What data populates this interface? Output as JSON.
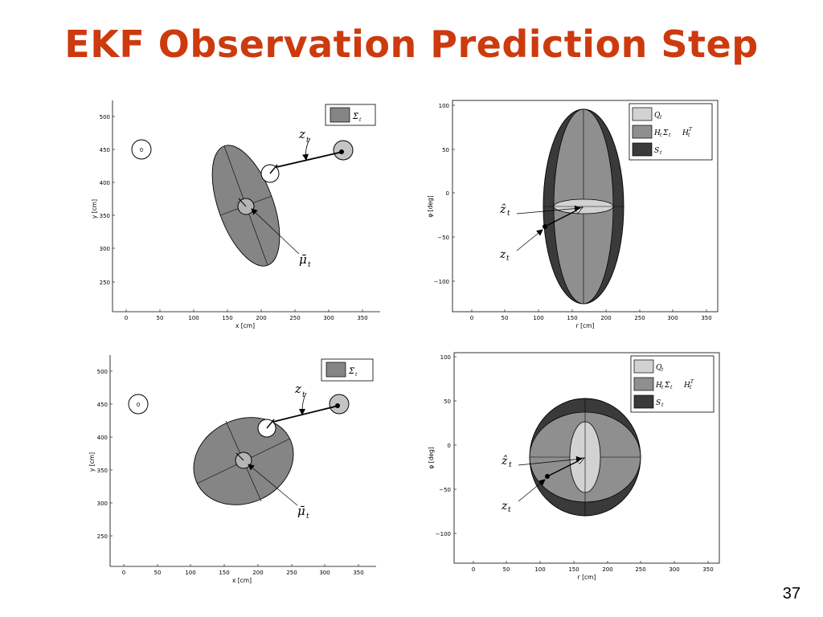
{
  "slide": {
    "title": "EKF Observation Prediction Step",
    "page_number": "37",
    "title_color": "#CC3A0E"
  },
  "panels": {
    "xy_top": {
      "xlabel": "x [cm]",
      "ylabel": "y [cm]",
      "xticks": [
        "0",
        "50",
        "100",
        "150",
        "200",
        "250",
        "300",
        "350"
      ],
      "yticks": [
        "500",
        "450",
        "400",
        "350",
        "300",
        "250"
      ],
      "legend": "Σ̄",
      "legend_sub": "t",
      "landmark_label": "0",
      "z_label": "z",
      "z_sub": "t",
      "mu_label": "μ̄",
      "mu_sub": "t"
    },
    "xy_bottom": {
      "xlabel": "x [cm]",
      "ylabel": "y [cm]",
      "xticks": [
        "0",
        "50",
        "100",
        "150",
        "200",
        "250",
        "300",
        "350"
      ],
      "yticks": [
        "500",
        "450",
        "400",
        "350",
        "300",
        "250"
      ],
      "legend": "Σ̄",
      "legend_sub": "t",
      "landmark_label": "0",
      "z_label": "z",
      "z_sub": "t",
      "mu_label": "μ̄",
      "mu_sub": "t"
    },
    "polar_top": {
      "xlabel": "r [cm]",
      "ylabel": "φ [deg]",
      "xticks": [
        "0",
        "50",
        "100",
        "150",
        "200",
        "250",
        "300",
        "350"
      ],
      "yticks": [
        "100",
        "50",
        "0",
        "−50",
        "−100"
      ],
      "legend": [
        {
          "label": "Q",
          "sub": "t",
          "color": "#d2d2d2"
        },
        {
          "label": "H",
          "sub": "t",
          "extra": "Σ̄",
          "extra_sub": "t",
          "tail": "H",
          "tail_sub": "t",
          "tail_sup": "T",
          "color": "#8f8f8f"
        },
        {
          "label": "S",
          "sub": "t",
          "color": "#3a3a3a"
        }
      ],
      "zhat_label": "ẑ",
      "zhat_sub": "t",
      "z_label": "z",
      "z_sub": "t"
    },
    "polar_bottom": {
      "xlabel": "r [cm]",
      "ylabel": "φ [deg]",
      "xticks": [
        "0",
        "50",
        "100",
        "150",
        "200",
        "250",
        "300",
        "350"
      ],
      "yticks": [
        "100",
        "50",
        "0",
        "−50",
        "−100"
      ],
      "legend": [
        {
          "label": "Q",
          "sub": "t",
          "color": "#d2d2d2"
        },
        {
          "label": "H",
          "sub": "t",
          "extra": "Σ̄",
          "extra_sub": "t",
          "tail": "H",
          "tail_sub": "t",
          "tail_sup": "T",
          "color": "#8f8f8f"
        },
        {
          "label": "S",
          "sub": "t",
          "color": "#3a3a3a"
        }
      ],
      "zhat_label": "ẑ",
      "zhat_sub": "t",
      "z_label": "z",
      "z_sub": "t"
    }
  }
}
